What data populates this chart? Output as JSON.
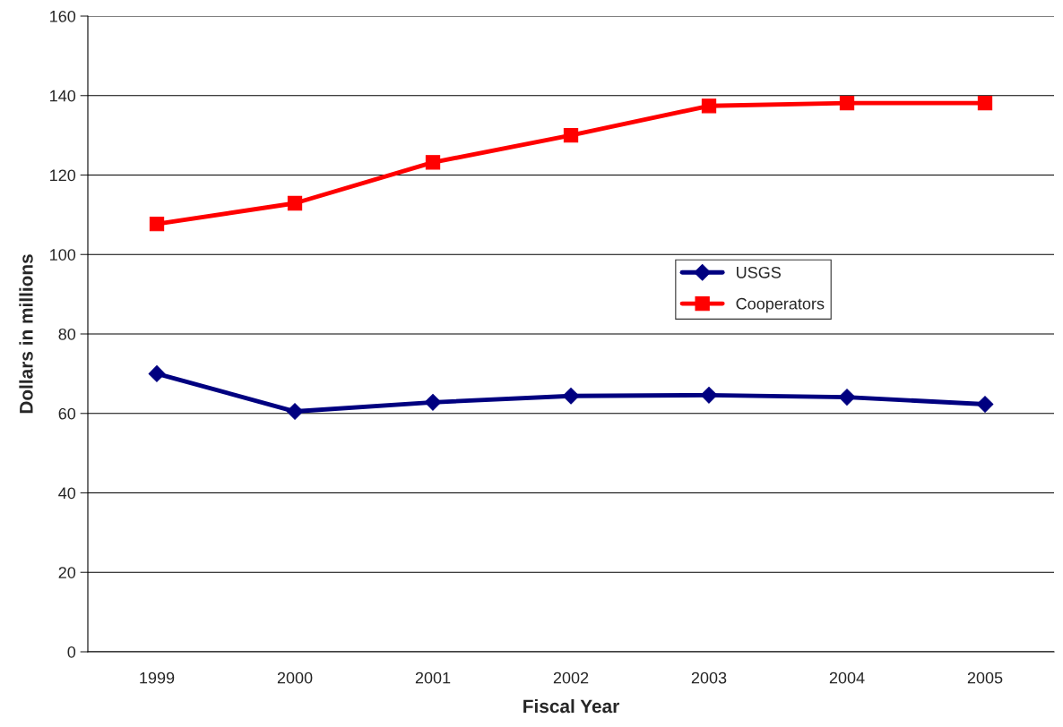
{
  "chart_data": {
    "type": "line",
    "xlabel": "Fiscal Year",
    "ylabel": "Dollars in millions",
    "categories": [
      "1999",
      "2000",
      "2001",
      "2002",
      "2003",
      "2004",
      "2005"
    ],
    "series": [
      {
        "name": "USGS",
        "color": "#000080",
        "marker": "diamond",
        "values": [
          70,
          60.5,
          62.8,
          64.4,
          64.6,
          64.1,
          62.3
        ]
      },
      {
        "name": "Cooperators",
        "color": "#ff0000",
        "marker": "square",
        "values": [
          107.7,
          112.9,
          123.2,
          130,
          137.4,
          138.1,
          138.1
        ]
      }
    ],
    "ylim": [
      0,
      160
    ],
    "yticks": [
      0,
      20,
      40,
      60,
      80,
      100,
      120,
      140,
      160
    ],
    "grid": "y",
    "legend": "center right"
  }
}
